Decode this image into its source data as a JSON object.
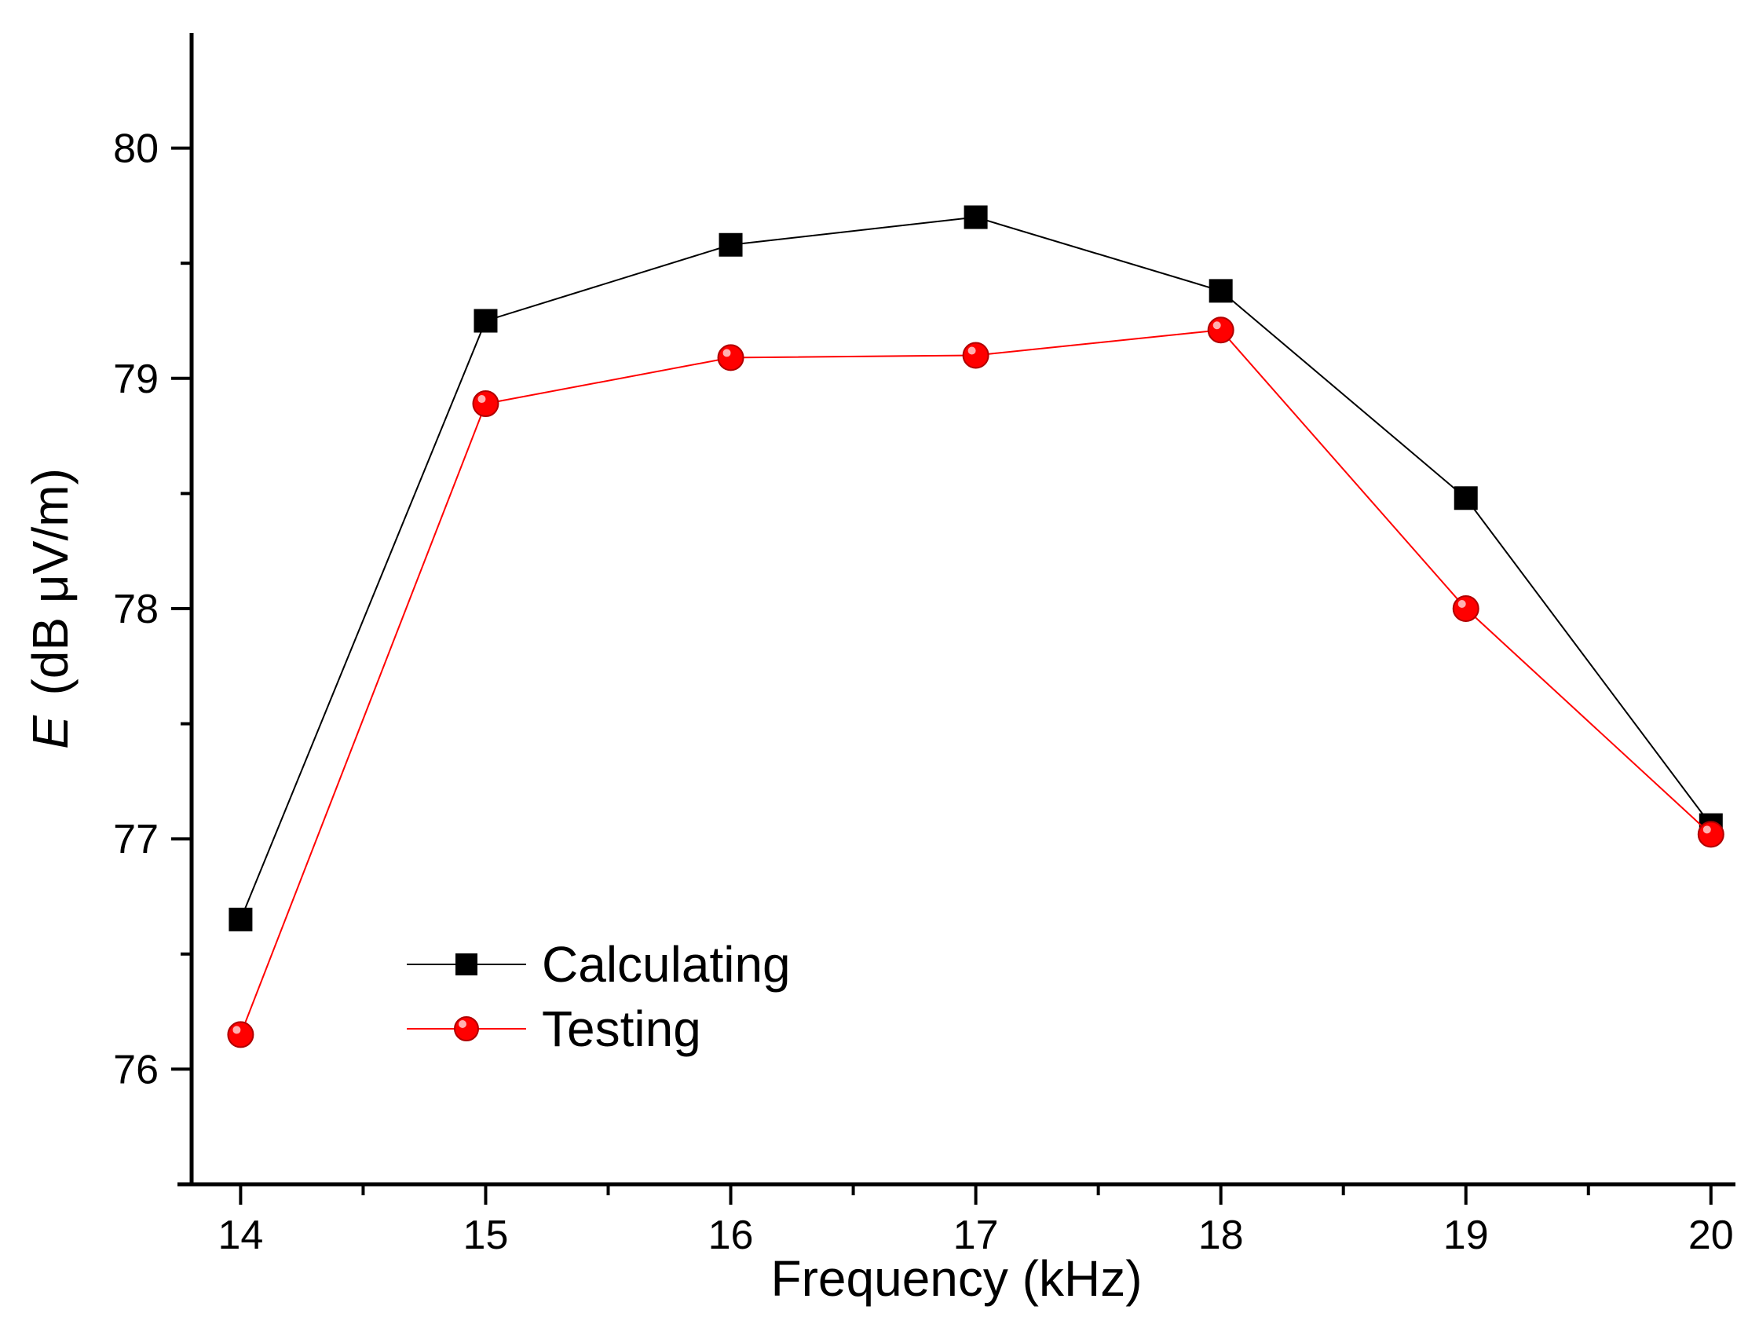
{
  "chart_data": {
    "type": "line",
    "title": "",
    "xlabel": "Frequency (kHz)",
    "ylabel": {
      "symbol": "E",
      "unit": "(dB μV/m)"
    },
    "xlim": [
      13.8,
      20.1
    ],
    "ylim": [
      75.5,
      80.5
    ],
    "x": [
      14,
      15,
      16,
      17,
      18,
      19,
      20
    ],
    "xticks": [
      14,
      15,
      16,
      17,
      18,
      19,
      20
    ],
    "xtick_labels": [
      "14",
      "15",
      "16",
      "17",
      "18",
      "19",
      "20"
    ],
    "yticks": [
      76,
      77,
      78,
      79,
      80
    ],
    "ytick_labels": [
      "76",
      "77",
      "78",
      "79",
      "80"
    ],
    "grid": false,
    "legend_position": "lower-left",
    "series": [
      {
        "name": "Calculating",
        "color": "#000000",
        "marker": "square",
        "values": [
          76.65,
          79.25,
          79.58,
          79.7,
          79.38,
          78.48,
          77.06
        ]
      },
      {
        "name": "Testing",
        "color": "#ff0000",
        "marker": "circle",
        "values": [
          76.15,
          78.89,
          79.09,
          79.1,
          79.21,
          78.0,
          77.02
        ]
      }
    ]
  }
}
